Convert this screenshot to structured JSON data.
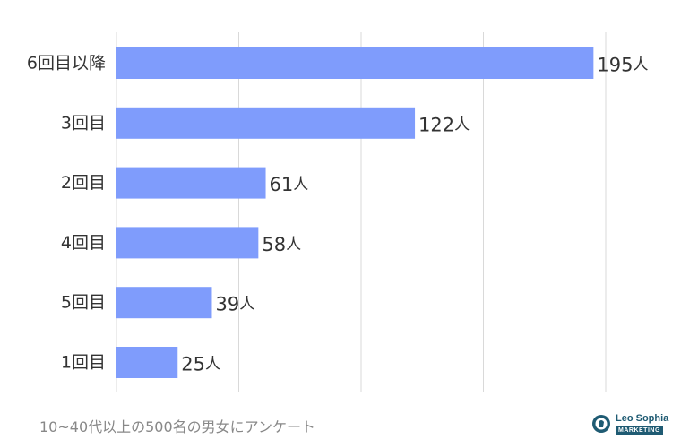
{
  "chart_data": {
    "type": "bar",
    "orientation": "horizontal",
    "categories": [
      "6回目以降",
      "3回目",
      "2回目",
      "4回目",
      "5回目",
      "1回目"
    ],
    "values": [
      195,
      122,
      61,
      58,
      39,
      25
    ],
    "unit": "人",
    "xlim": [
      0,
      200
    ],
    "grid": true,
    "title": "",
    "xlabel": "",
    "ylabel": ""
  },
  "colors": {
    "bar": "#7f9cfc",
    "grid": "#d9d9d9",
    "text": "#333333",
    "footnote": "#888888",
    "logo": "#1f5b73"
  },
  "footnote": "10~40代以上の500名の男女にアンケート",
  "logo": {
    "name": "Leo Sophia",
    "sub": "MARKETING",
    "icon": "lion-head-icon"
  }
}
